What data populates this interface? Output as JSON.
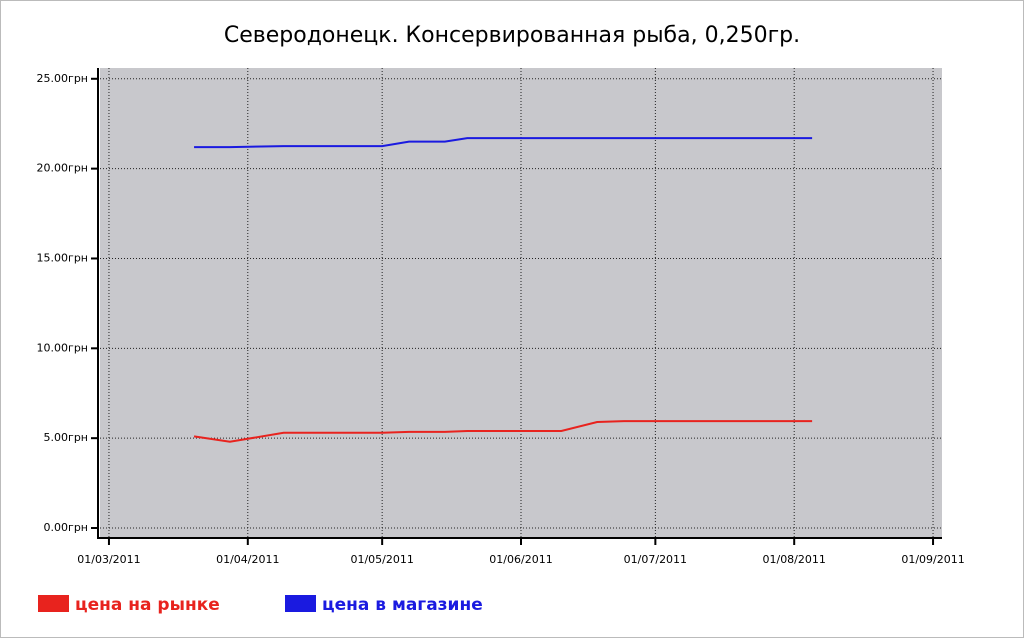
{
  "chart_data": {
    "type": "line",
    "title": "Северодонецк. Консервированная рыба, 0,250гр.",
    "x": [
      "20/03/2011",
      "28/03/2011",
      "09/04/2011",
      "16/04/2011",
      "22/04/2011",
      "01/05/2011",
      "07/05/2011",
      "15/05/2011",
      "20/05/2011",
      "29/05/2011",
      "04/06/2011",
      "10/06/2011",
      "18/06/2011",
      "24/06/2011",
      "01/07/2011",
      "09/07/2011",
      "16/07/2011",
      "23/07/2011",
      "28/07/2011",
      "05/08/2011"
    ],
    "series": [
      {
        "name": "цена на рынке",
        "color": "#e8231e",
        "values": [
          5.1,
          4.8,
          5.3,
          5.3,
          5.3,
          5.3,
          5.35,
          5.35,
          5.4,
          5.4,
          5.4,
          5.4,
          5.9,
          5.95,
          5.95,
          5.95,
          5.95,
          5.95,
          5.95,
          5.95
        ]
      },
      {
        "name": "цена в магазине",
        "color": "#1a1ae0",
        "values": [
          21.2,
          21.2,
          21.25,
          21.25,
          21.25,
          21.25,
          21.5,
          21.5,
          21.7,
          21.7,
          21.7,
          21.7,
          21.7,
          21.7,
          21.7,
          21.7,
          21.7,
          21.7,
          21.7,
          21.7
        ]
      }
    ],
    "xlim": [
      "27/02/2011",
      "03/09/2011"
    ],
    "xticks": [
      "01/03/2011",
      "01/04/2011",
      "01/05/2011",
      "01/06/2011",
      "01/07/2011",
      "01/08/2011",
      "01/09/2011"
    ],
    "ylim": [
      -0.5,
      25.6
    ],
    "yticks": [
      {
        "value": 0,
        "label": "0.00грн"
      },
      {
        "value": 5,
        "label": "5.00грн"
      },
      {
        "value": 10,
        "label": "10.00грн"
      },
      {
        "value": 15,
        "label": "15.00грн"
      },
      {
        "value": 20,
        "label": "20.00грн"
      },
      {
        "value": 25,
        "label": "25.00грн"
      }
    ],
    "grid": true,
    "plot_background": "#c8c8cc"
  }
}
